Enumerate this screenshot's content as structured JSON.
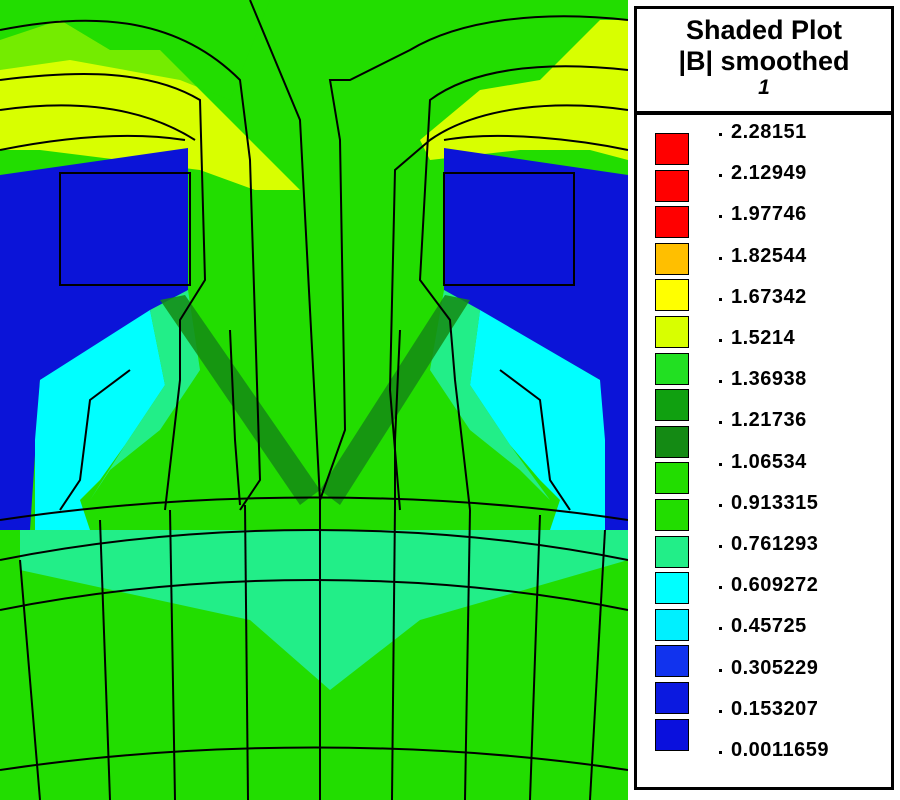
{
  "legend": {
    "title": "Shaded Plot",
    "subtitle": "|B| smoothed",
    "index": "1",
    "levels": [
      {
        "value": "2.28151",
        "color": "#ff0000"
      },
      {
        "value": "2.12949",
        "color": "#ff0000"
      },
      {
        "value": "1.97746",
        "color": "#ff0000"
      },
      {
        "value": "1.82544",
        "color": "#ff0000"
      },
      {
        "value": "1.67342",
        "color": "#ffbf00"
      },
      {
        "value": "1.5214",
        "color": "#ffff00"
      },
      {
        "value": "1.36938",
        "color": "#d8ff00"
      },
      {
        "value": "1.21736",
        "color": "#22e022"
      },
      {
        "value": "1.06534",
        "color": "#10a010"
      },
      {
        "value": "0.913315",
        "color": "#148a14"
      },
      {
        "value": "0.761293",
        "color": "#22dd00"
      },
      {
        "value": "0.609272",
        "color": "#22dd00"
      },
      {
        "value": "0.45725",
        "color": "#22ee88"
      },
      {
        "value": "0.305229",
        "color": "#00ffff"
      },
      {
        "value": "0.153207",
        "color": "#00f0ff"
      },
      {
        "value": "0.0011659",
        "color": "#1133ee"
      }
    ],
    "extra_swatches": [
      "#0b19e0",
      "#0a10dd"
    ]
  },
  "colors": {
    "air_blue": "#0b14d8",
    "cyan": "#00ffff",
    "green": "#22dd00",
    "mint": "#22ee88",
    "yellow_green": "#d8ff00",
    "dark_green": "#148a14"
  }
}
